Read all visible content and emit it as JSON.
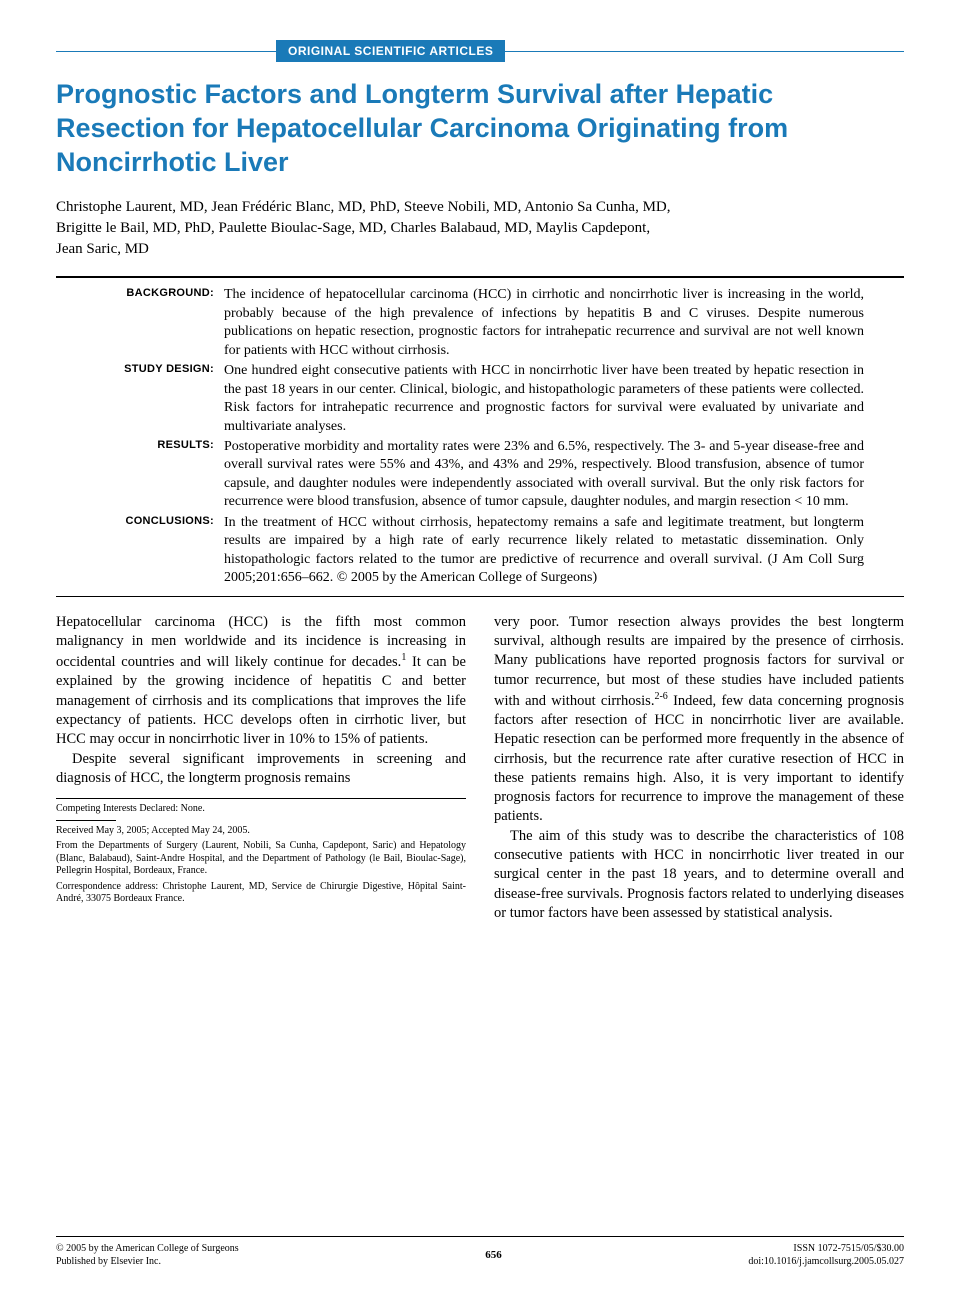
{
  "banner": {
    "label": "ORIGINAL SCIENTIFIC ARTICLES",
    "bg_color": "#1a7ab8"
  },
  "title": "Prognostic Factors and Longterm Survival after Hepatic Resection for Hepatocellular Carcinoma Originating from Noncirrhotic Liver",
  "authors_line1": "Christophe Laurent, MD, Jean Frédéric Blanc, MD, PhD, Steeve Nobili, MD, Antonio Sa Cunha, MD,",
  "authors_line2": "Brigitte le Bail, MD, PhD, Paulette Bioulac-Sage, MD, Charles Balabaud, MD, Maylis Capdepont,",
  "authors_line3": "Jean Saric, MD",
  "abstract": {
    "background": {
      "label": "BACKGROUND:",
      "text": "The incidence of hepatocellular carcinoma (HCC) in cirrhotic and noncirrhotic liver is increasing in the world, probably because of the high prevalence of infections by hepatitis B and C viruses. Despite numerous publications on hepatic resection, prognostic factors for intrahepatic recurrence and survival are not well known for patients with HCC without cirrhosis."
    },
    "study_design": {
      "label": "STUDY DESIGN:",
      "text": "One hundred eight consecutive patients with HCC in noncirrhotic liver have been treated by hepatic resection in the past 18 years in our center. Clinical, biologic, and histopathologic parameters of these patients were collected. Risk factors for intrahepatic recurrence and prognostic factors for survival were evaluated by univariate and multivariate analyses."
    },
    "results": {
      "label": "RESULTS:",
      "text": "Postoperative morbidity and mortality rates were 23% and 6.5%, respectively. The 3- and 5-year disease-free and overall survival rates were 55% and 43%, and 43% and 29%, respectively. Blood transfusion, absence of tumor capsule, and daughter nodules were independently associated with overall survival. But the only risk factors for recurrence were blood transfusion, absence of tumor capsule, daughter nodules, and margin resection < 10 mm."
    },
    "conclusions": {
      "label": "CONCLUSIONS:",
      "text": "In the treatment of HCC without cirrhosis, hepatectomy remains a safe and legitimate treatment, but longterm results are impaired by a high rate of early recurrence likely related to metastatic dissemination. Only histopathologic factors related to the tumor are predictive of recurrence and overall survival. (J Am Coll Surg 2005;201:656–662. © 2005 by the American College of Surgeons)"
    }
  },
  "body": {
    "p1": "Hepatocellular carcinoma (HCC) is the fifth most common malignancy in men worldwide and its incidence is increasing in occidental countries and will likely continue for decades.",
    "p1_sup": "1",
    "p1_cont": " It can be explained by the growing incidence of hepatitis C and better management of cirrhosis and its complications that improves the life expectancy of patients. HCC develops often in cirrhotic liver, but HCC may occur in noncirrhotic liver in 10% to 15% of patients.",
    "p2": "Despite several significant improvements in screening and diagnosis of HCC, the longterm prognosis remains",
    "p3": "very poor. Tumor resection always provides the best longterm survival, although results are impaired by the presence of cirrhosis. Many publications have reported prognosis factors for survival or tumor recurrence, but most of these studies have included patients with and without cirrhosis.",
    "p3_sup": "2-6",
    "p3_cont": " Indeed, few data concerning prognosis factors after resection of HCC in noncirrhotic liver are available. Hepatic resection can be performed more frequently in the absence of cirrhosis, but the recurrence rate after curative resection of HCC in these patients remains high. Also, it is very important to identify prognosis factors for recurrence to improve the management of these patients.",
    "p4": "The aim of this study was to describe the characteristics of 108 consecutive patients with HCC in noncirrhotic liver treated in our surgical center in the past 18 years, and to determine overall and disease-free survivals. Prognosis factors related to underlying diseases or tumor factors have been assessed by statistical analysis."
  },
  "footnotes": {
    "competing": "Competing Interests Declared: None.",
    "received": "Received May 3, 2005; Accepted May 24, 2005.",
    "from": "From the Departments of Surgery (Laurent, Nobili, Sa Cunha, Capdepont, Saric) and Hepatology (Blanc, Balabaud), Saint-Andre Hospital, and the Department of Pathology (le Bail, Bioulac-Sage), Pellegrin Hospital, Bordeaux, France.",
    "correspondence": "Correspondence address: Christophe Laurent, MD, Service de Chirurgie Digestive, Hôpital Saint-André, 33075 Bordeaux France."
  },
  "footer": {
    "copyright": "© 2005 by the American College of Surgeons",
    "published": "Published by Elsevier Inc.",
    "page": "656",
    "issn": "ISSN 1072-7515/05/$30.00",
    "doi": "doi:10.1016/j.jamcollsurg.2005.05.027"
  }
}
